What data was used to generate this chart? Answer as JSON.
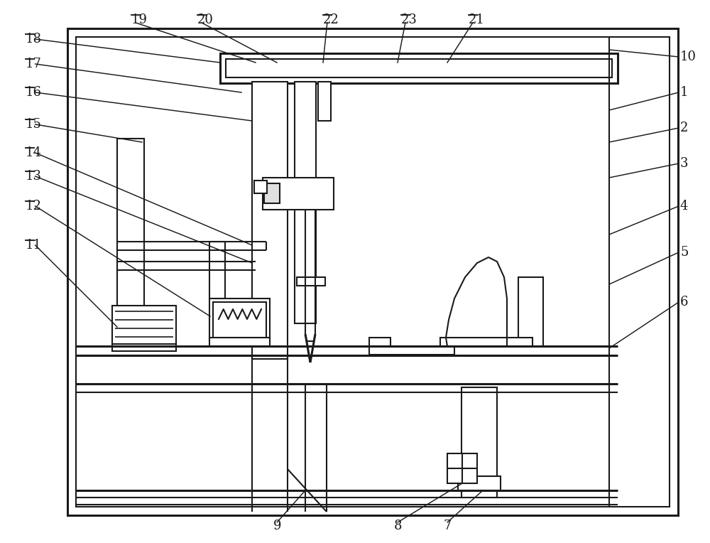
{
  "bg_color": "#ffffff",
  "line_color": "#1a1a1a",
  "lw": 1.5,
  "lw2": 2.2,
  "fig_width": 10.0,
  "fig_height": 7.64
}
